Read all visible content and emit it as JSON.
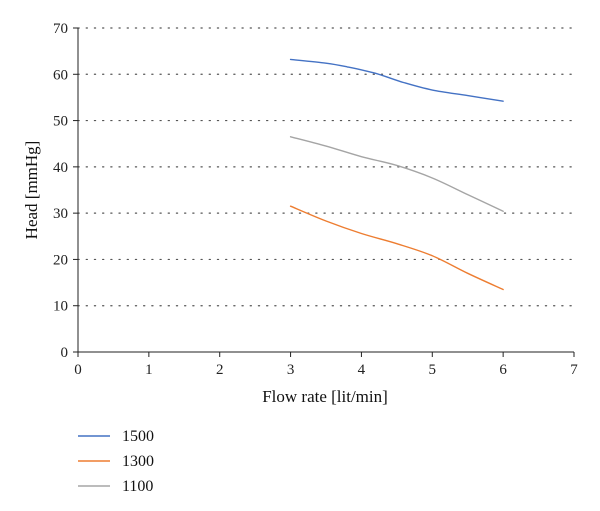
{
  "chart_data": {
    "type": "line",
    "xlabel": "Flow rate [lit/min]",
    "ylabel": "Head [mmHg]",
    "xlim": [
      0,
      7
    ],
    "ylim": [
      0,
      70
    ],
    "xticks": [
      "0",
      "1",
      "2",
      "3",
      "4",
      "5",
      "6",
      "7"
    ],
    "yticks": [
      "0",
      "10",
      "20",
      "30",
      "40",
      "50",
      "60",
      "70"
    ],
    "grid": "horizontal-dotted",
    "legend_position": "bottom-left",
    "series": [
      {
        "name": "1500",
        "color": "#4472c4",
        "points": [
          [
            3,
            63.2
          ],
          [
            3.5,
            62.4
          ],
          [
            3.8,
            61.6
          ],
          [
            4.2,
            60.2
          ],
          [
            4.6,
            58.2
          ],
          [
            5,
            56.6
          ],
          [
            5.5,
            55.4
          ],
          [
            6,
            54.2
          ]
        ]
      },
      {
        "name": "1300",
        "color": "#ed7d31",
        "points": [
          [
            3,
            31.5
          ],
          [
            3.5,
            28.3
          ],
          [
            4,
            25.6
          ],
          [
            4.5,
            23.4
          ],
          [
            5,
            20.8
          ],
          [
            5.5,
            17.0
          ],
          [
            6,
            13.5
          ]
        ]
      },
      {
        "name": "1100",
        "color": "#a5a5a5",
        "points": [
          [
            3,
            46.5
          ],
          [
            3.5,
            44.5
          ],
          [
            4,
            42.2
          ],
          [
            4.5,
            40.3
          ],
          [
            5,
            37.6
          ],
          [
            5.5,
            34.0
          ],
          [
            6,
            30.4
          ]
        ]
      }
    ]
  }
}
